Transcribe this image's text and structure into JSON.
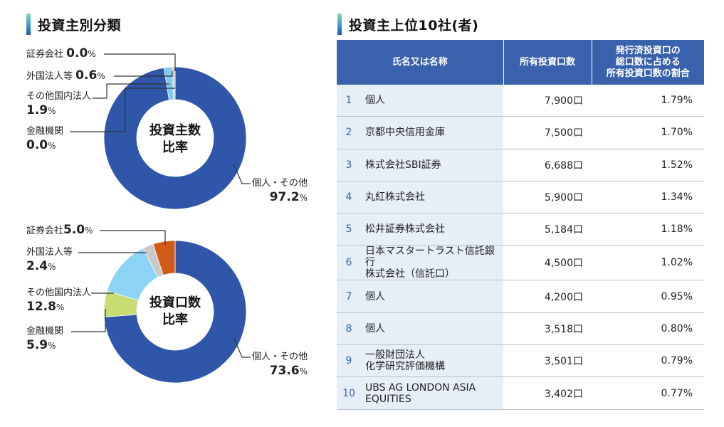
{
  "left_title": "投資主別分類",
  "right_title": "投資主上位10社(者)",
  "chart_data": [
    {
      "type": "pie",
      "variant": "donut",
      "title": "投資主数比率",
      "center_label": [
        "投資主数",
        "比率"
      ],
      "unit": "%",
      "categories": [
        "個人・その他",
        "金融機関",
        "その他国内法人",
        "外国法人等",
        "証券会社"
      ],
      "values": [
        97.2,
        0.0,
        1.9,
        0.6,
        0.0
      ],
      "value_labels": [
        "97.2",
        "0.0",
        "1.9",
        "0.6",
        "0.0"
      ],
      "colors": [
        "#2f56a8",
        "#c7dd73",
        "#7ecbef",
        "#c9c9c9",
        "#d85c1c"
      ]
    },
    {
      "type": "pie",
      "variant": "donut",
      "title": "投資口数比率",
      "center_label": [
        "投資口数",
        "比率"
      ],
      "unit": "%",
      "categories": [
        "個人・その他",
        "金融機関",
        "その他国内法人",
        "外国法人等",
        "証券会社"
      ],
      "values": [
        73.6,
        5.9,
        12.8,
        2.4,
        5.0
      ],
      "value_labels": [
        "73.6",
        "5.9",
        "12.8",
        "2.4",
        "5.0"
      ],
      "colors": [
        "#2f56a8",
        "#c7dd73",
        "#8dd3f3",
        "#c9c9c9",
        "#d05a1a"
      ]
    }
  ],
  "table": {
    "headers": [
      "氏名又は名称",
      "所有投資口数",
      "発行済投資口の\n総口数に占める\n所有投資口数の割合"
    ],
    "rows": [
      {
        "rank": "1",
        "name": "個人",
        "units": "7,900口",
        "pct": "1.79%"
      },
      {
        "rank": "2",
        "name": "京都中央信用金庫",
        "units": "7,500口",
        "pct": "1.70%"
      },
      {
        "rank": "3",
        "name": "株式会社SBI証券",
        "units": "6,688口",
        "pct": "1.52%"
      },
      {
        "rank": "4",
        "name": "丸紅株式会社",
        "units": "5,900口",
        "pct": "1.34%"
      },
      {
        "rank": "5",
        "name": "松井証券株式会社",
        "units": "5,184口",
        "pct": "1.18%"
      },
      {
        "rank": "6",
        "name": "日本マスタートラスト信託銀行\n株式会社（信託口）",
        "units": "4,500口",
        "pct": "1.02%"
      },
      {
        "rank": "7",
        "name": "個人",
        "units": "4,200口",
        "pct": "0.95%"
      },
      {
        "rank": "8",
        "name": "個人",
        "units": "3,518口",
        "pct": "0.80%"
      },
      {
        "rank": "9",
        "name": "一般財団法人\n化学研究評価機構",
        "units": "3,501口",
        "pct": "0.79%"
      },
      {
        "rank": "10",
        "name": "UBS AG LONDON ASIA\nEQUITIES",
        "units": "3,402口",
        "pct": "0.77%"
      }
    ]
  }
}
